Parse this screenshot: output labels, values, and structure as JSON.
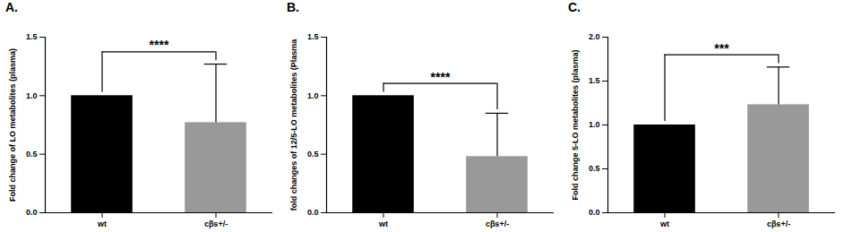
{
  "chart_data": [
    {
      "type": "bar",
      "title": "A.",
      "y_label": "Fold change of LO metabolites (plasma)",
      "categories": [
        "wt",
        "cβs+/-"
      ],
      "values": [
        1.0,
        0.77
      ],
      "errors": [
        0,
        0.5
      ],
      "colors": [
        "#000000",
        "#999999"
      ],
      "annotation": "****",
      "ylim": [
        0,
        1.5
      ],
      "yticks": [
        {
          "value": 0,
          "label": "0.0"
        },
        0.5,
        {
          "value": 1,
          "label": "1.0"
        },
        1.5
      ]
    },
    {
      "type": "bar",
      "title": "B.",
      "y_label": "fold changes of 12/5-LO metabolites (Plasma",
      "categories": [
        "wt",
        "cβs+/-"
      ],
      "values": [
        1.0,
        0.48
      ],
      "errors": [
        0,
        0.37
      ],
      "colors": [
        "#000000",
        "#999999"
      ],
      "annotation": "****",
      "ylim": [
        0,
        1.5
      ],
      "yticks": [
        {
          "value": 0,
          "label": "0.0"
        },
        0.5,
        {
          "value": 1,
          "label": "1.0"
        },
        1.5
      ]
    },
    {
      "type": "bar",
      "title": "C.",
      "y_label": "Fold change 5-LO metabolites (plasma)",
      "categories": [
        "wt",
        "cβs+/-"
      ],
      "values": [
        1.0,
        1.23
      ],
      "errors": [
        0,
        0.43
      ],
      "colors": [
        "#000000",
        "#999999"
      ],
      "annotation": "***",
      "ylim": [
        0,
        2
      ],
      "yticks": [
        {
          "value": 0,
          "label": "0.0"
        },
        0.5,
        {
          "value": 1,
          "label": "1.0"
        },
        1.5,
        {
          "value": 2,
          "label": "2.0"
        }
      ]
    }
  ]
}
